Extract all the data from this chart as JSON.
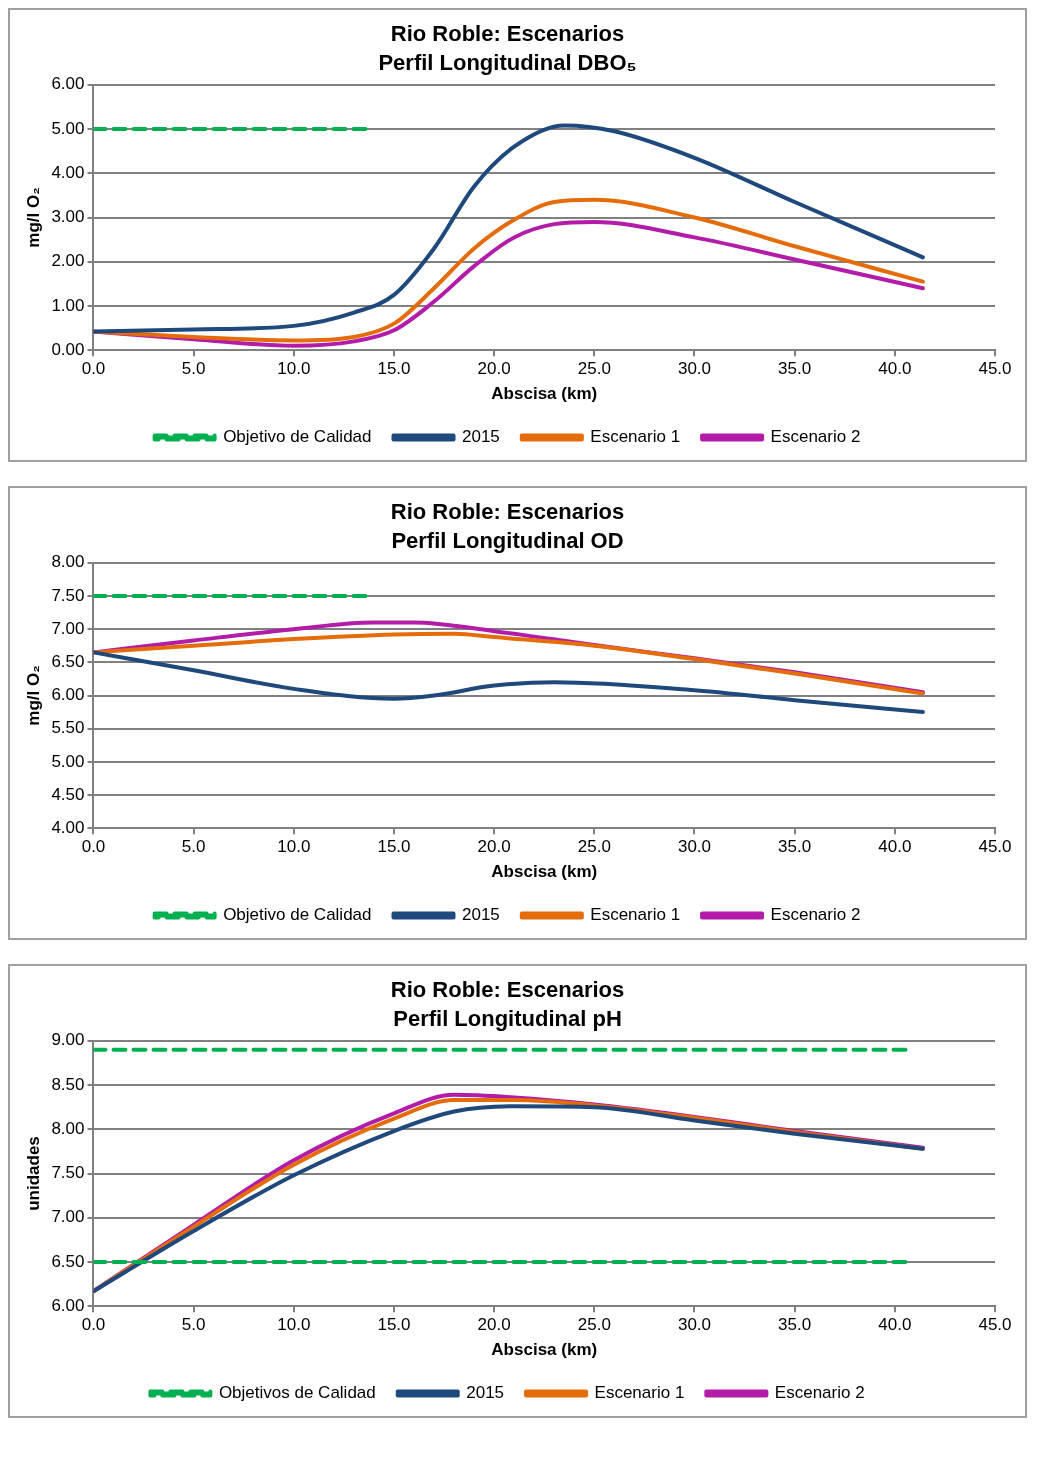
{
  "chart_data": [
    {
      "type": "line",
      "title": "Rio Roble: Escenarios",
      "subtitle": "Perfil Longitudinal DBO₅",
      "xlabel": "Abscisa (km)",
      "ylabel": "mg/l O₂",
      "grid": "y",
      "legend": "bottom",
      "marker": "none",
      "xlim": [
        0,
        45
      ],
      "xticks": [
        {
          "value": 0,
          "label": "0.0"
        },
        {
          "value": 5,
          "label": "5.0"
        },
        {
          "value": 10,
          "label": "10.0"
        },
        {
          "value": 15,
          "label": "15.0"
        },
        {
          "value": 20,
          "label": "20.0"
        },
        {
          "value": 25,
          "label": "25.0"
        },
        {
          "value": 30,
          "label": "30.0"
        },
        {
          "value": 35,
          "label": "35.0"
        },
        {
          "value": 40,
          "label": "40.0"
        },
        {
          "value": 45,
          "label": "45.0"
        }
      ],
      "ylim": [
        0,
        6
      ],
      "yticks": [
        {
          "value": 0,
          "label": "0.00"
        },
        {
          "value": 1,
          "label": "1.00"
        },
        {
          "value": 2,
          "label": "2.00"
        },
        {
          "value": 3,
          "label": "3.00"
        },
        {
          "value": 4,
          "label": "4.00"
        },
        {
          "value": 5,
          "label": "5.00"
        },
        {
          "value": 6,
          "label": "6.00"
        }
      ],
      "series": [
        {
          "name": "Objetivo de Calidad",
          "color": "#00b050",
          "line_style": "dashed",
          "x": [
            0,
            13.7
          ],
          "values": [
            5,
            5
          ]
        },
        {
          "name": "2015",
          "color": "#1f497d",
          "line_style": "solid",
          "x": [
            0,
            5,
            10,
            13,
            15,
            17,
            19,
            21,
            23.5,
            26,
            30,
            35,
            41.4
          ],
          "values": [
            0.42,
            0.47,
            0.55,
            0.85,
            1.25,
            2.3,
            3.7,
            4.6,
            5.08,
            4.95,
            4.35,
            3.35,
            2.1
          ]
        },
        {
          "name": "Escenario 1",
          "color": "#e46c0a",
          "line_style": "solid",
          "x": [
            0,
            5,
            10,
            13,
            15,
            17,
            19,
            21,
            23,
            25,
            30,
            35,
            41.4
          ],
          "values": [
            0.42,
            0.3,
            0.22,
            0.3,
            0.6,
            1.4,
            2.3,
            2.95,
            3.35,
            3.4,
            3.0,
            2.35,
            1.55
          ]
        },
        {
          "name": "Escenario 2",
          "color": "#b31ca8",
          "line_style": "solid",
          "x": [
            0,
            5,
            10,
            13,
            15,
            17,
            19,
            21,
            23,
            25,
            30,
            35,
            41.4
          ],
          "values": [
            0.42,
            0.25,
            0.1,
            0.2,
            0.45,
            1.1,
            1.9,
            2.55,
            2.85,
            2.9,
            2.55,
            2.05,
            1.4
          ]
        }
      ]
    },
    {
      "type": "line",
      "title": "Rio Roble: Escenarios",
      "subtitle": "Perfil Longitudinal OD",
      "xlabel": "Abscisa (km)",
      "ylabel": "mg/l O₂",
      "grid": "y",
      "legend": "bottom",
      "marker": "none",
      "xlim": [
        0,
        45
      ],
      "xticks": [
        {
          "value": 0,
          "label": "0.0"
        },
        {
          "value": 5,
          "label": "5.0"
        },
        {
          "value": 10,
          "label": "10.0"
        },
        {
          "value": 15,
          "label": "15.0"
        },
        {
          "value": 20,
          "label": "20.0"
        },
        {
          "value": 25,
          "label": "25.0"
        },
        {
          "value": 30,
          "label": "30.0"
        },
        {
          "value": 35,
          "label": "35.0"
        },
        {
          "value": 40,
          "label": "40.0"
        },
        {
          "value": 45,
          "label": "45.0"
        }
      ],
      "ylim": [
        4,
        8
      ],
      "yticks": [
        {
          "value": 4,
          "label": "4.00"
        },
        {
          "value": 4.5,
          "label": "4.50"
        },
        {
          "value": 5,
          "label": "5.00"
        },
        {
          "value": 5.5,
          "label": "5.50"
        },
        {
          "value": 6,
          "label": "6.00"
        },
        {
          "value": 6.5,
          "label": "6.50"
        },
        {
          "value": 7,
          "label": "7.00"
        },
        {
          "value": 7.5,
          "label": "7.50"
        },
        {
          "value": 8,
          "label": "8.00"
        }
      ],
      "series": [
        {
          "name": "Objetivo de Calidad",
          "color": "#00b050",
          "line_style": "dashed",
          "x": [
            0,
            13.7
          ],
          "values": [
            7.5,
            7.5
          ]
        },
        {
          "name": "2015",
          "color": "#1f497d",
          "line_style": "solid",
          "x": [
            0,
            5,
            10,
            15,
            17,
            20,
            23,
            30,
            35,
            41.4
          ],
          "values": [
            6.65,
            6.38,
            6.1,
            5.95,
            6.0,
            6.15,
            6.2,
            6.08,
            5.93,
            5.75
          ]
        },
        {
          "name": "Escenario 1",
          "color": "#e46c0a",
          "line_style": "solid",
          "x": [
            0,
            5,
            10,
            15,
            18,
            20,
            25,
            30,
            35,
            41.4
          ],
          "values": [
            6.65,
            6.75,
            6.85,
            6.92,
            6.93,
            6.88,
            6.75,
            6.55,
            6.33,
            6.03
          ]
        },
        {
          "name": "Escenario 2",
          "color": "#b31ca8",
          "line_style": "solid",
          "x": [
            0,
            5,
            10,
            14,
            16,
            20,
            25,
            30,
            35,
            41.4
          ],
          "values": [
            6.65,
            6.83,
            7.0,
            7.1,
            7.1,
            6.97,
            6.76,
            6.56,
            6.35,
            6.05
          ]
        }
      ]
    },
    {
      "type": "line",
      "title": "Rio Roble: Escenarios",
      "subtitle": "Perfil Longitudinal pH",
      "xlabel": "Abscisa (km)",
      "ylabel": "unidades",
      "grid": "y",
      "legend": "bottom",
      "marker": "none",
      "xlim": [
        0,
        45
      ],
      "xticks": [
        {
          "value": 0,
          "label": "0.0"
        },
        {
          "value": 5,
          "label": "5.0"
        },
        {
          "value": 10,
          "label": "10.0"
        },
        {
          "value": 15,
          "label": "15.0"
        },
        {
          "value": 20,
          "label": "20.0"
        },
        {
          "value": 25,
          "label": "25.0"
        },
        {
          "value": 30,
          "label": "30.0"
        },
        {
          "value": 35,
          "label": "35.0"
        },
        {
          "value": 40,
          "label": "40.0"
        },
        {
          "value": 45,
          "label": "45.0"
        }
      ],
      "ylim": [
        6,
        9
      ],
      "yticks": [
        {
          "value": 6,
          "label": "6.00"
        },
        {
          "value": 6.5,
          "label": "6.50"
        },
        {
          "value": 7,
          "label": "7.00"
        },
        {
          "value": 7.5,
          "label": "7.50"
        },
        {
          "value": 8,
          "label": "8.00"
        },
        {
          "value": 8.5,
          "label": "8.50"
        },
        {
          "value": 9,
          "label": "9.00"
        }
      ],
      "series": [
        {
          "name": "Objetivos de Calidad",
          "color": "#00b050",
          "line_style": "dashed",
          "x": [
            0,
            40.7
          ],
          "values": [
            8.9,
            8.9
          ]
        },
        {
          "color": "#00b050",
          "line_style": "dashed",
          "x": [
            0,
            40.7
          ],
          "values": [
            6.5,
            6.5
          ]
        },
        {
          "name": "2015",
          "color": "#1f497d",
          "line_style": "solid",
          "x": [
            0,
            5,
            10,
            15,
            18,
            21,
            25,
            30,
            35,
            41.4
          ],
          "values": [
            6.17,
            6.85,
            7.48,
            7.98,
            8.2,
            8.26,
            8.25,
            8.1,
            7.95,
            7.78
          ]
        },
        {
          "name": "Escenario 1",
          "color": "#e46c0a",
          "line_style": "solid",
          "x": [
            0,
            5,
            10,
            15,
            18,
            21,
            25,
            30,
            35,
            41.4
          ],
          "values": [
            6.17,
            6.9,
            7.6,
            8.12,
            8.33,
            8.33,
            8.27,
            8.13,
            7.97,
            7.78
          ]
        },
        {
          "name": "Escenario 2",
          "color": "#b31ca8",
          "line_style": "solid",
          "x": [
            0,
            5,
            10,
            15,
            18,
            21,
            25,
            30,
            35,
            41.4
          ],
          "values": [
            6.17,
            6.92,
            7.65,
            8.18,
            8.39,
            8.36,
            8.28,
            8.14,
            7.98,
            7.79
          ]
        }
      ]
    }
  ]
}
